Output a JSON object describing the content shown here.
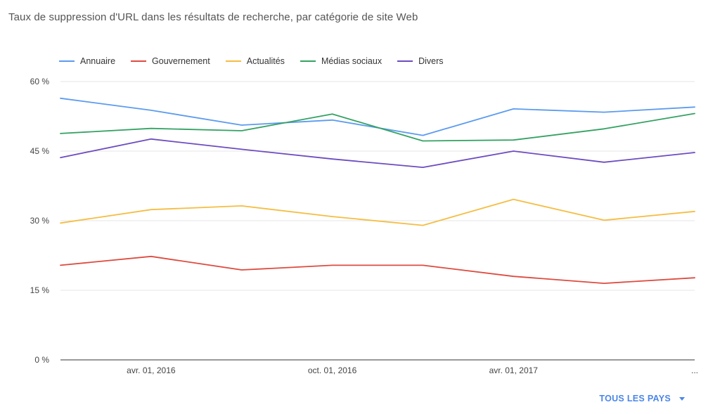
{
  "chart_data": {
    "type": "line",
    "title": "Taux de suppression d'URL dans les résultats de recherche, par catégorie de site Web",
    "xlabel": "",
    "ylabel": "",
    "ylim": [
      0,
      60
    ],
    "y_ticks": [
      {
        "value": 0,
        "label": "0 %"
      },
      {
        "value": 15,
        "label": "15 %"
      },
      {
        "value": 30,
        "label": "30 %"
      },
      {
        "value": 45,
        "label": "45 %"
      },
      {
        "value": 60,
        "label": "60 %"
      }
    ],
    "x": [
      "",
      "avr. 01, 2016",
      "",
      "oct. 01, 2016",
      "",
      "avr. 01, 2017",
      "",
      "..."
    ],
    "x_tick_labels": [
      {
        "index": 1,
        "label": "avr. 01, 2016"
      },
      {
        "index": 3,
        "label": "oct. 01, 2016"
      },
      {
        "index": 5,
        "label": "avr. 01, 2017"
      },
      {
        "index": 7,
        "label": "..."
      }
    ],
    "legend_position": "top-left",
    "series": [
      {
        "name": "Annuaire",
        "color": "#5b9bef",
        "values": [
          56.4,
          53.8,
          50.6,
          51.7,
          48.4,
          54.1,
          53.4,
          54.5
        ]
      },
      {
        "name": "Gouvernement",
        "color": "#de4b3f",
        "values": [
          20.4,
          22.3,
          19.4,
          20.4,
          20.4,
          18.0,
          16.5,
          17.7
        ]
      },
      {
        "name": "Actualités",
        "color": "#f5bd42",
        "values": [
          29.5,
          32.4,
          33.2,
          30.9,
          29.0,
          34.6,
          30.1,
          32.0
        ]
      },
      {
        "name": "Médias sociaux",
        "color": "#34a263",
        "values": [
          48.8,
          49.9,
          49.4,
          53.0,
          47.2,
          47.4,
          49.8,
          53.1
        ]
      },
      {
        "name": "Divers",
        "color": "#6d4cc1",
        "values": [
          43.6,
          47.6,
          45.4,
          43.3,
          41.5,
          45.0,
          42.6,
          44.7
        ]
      }
    ]
  },
  "footer": {
    "country_filter_label": "TOUS LES PAYS"
  }
}
